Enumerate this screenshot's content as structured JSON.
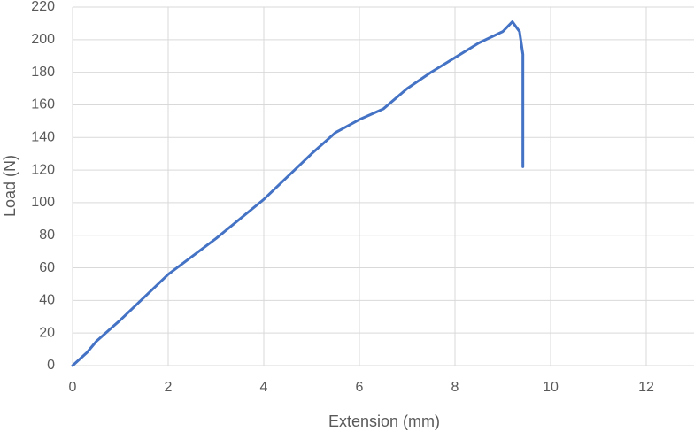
{
  "chart_data": {
    "type": "line",
    "x_label": "Extension (mm)",
    "y_label": "Load (N)",
    "series": [
      {
        "color": "#4472c4",
        "x": [
          0,
          0.3,
          0.5,
          1,
          1.5,
          2,
          3,
          4,
          5,
          5.5,
          6,
          6.5,
          7,
          7.5,
          8,
          8.5,
          9,
          9.2,
          9.35,
          9.42,
          9.42
        ],
        "values": [
          0,
          8,
          15,
          28,
          42,
          56,
          78,
          102,
          130,
          143,
          151,
          157.5,
          170,
          180,
          189,
          198,
          205,
          211,
          205,
          191,
          122
        ]
      }
    ],
    "xlim": [
      0,
      13
    ],
    "xticks": [
      0,
      2,
      4,
      6,
      8,
      10,
      12
    ],
    "ylim": [
      0,
      220
    ],
    "yticks": [
      0,
      20,
      40,
      60,
      80,
      100,
      120,
      140,
      160,
      180,
      200,
      220
    ],
    "grid": true
  }
}
